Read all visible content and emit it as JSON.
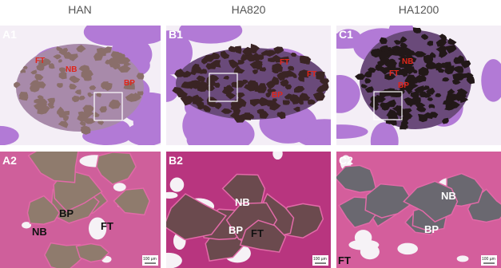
{
  "columns": [
    {
      "header": "HAN",
      "panels": [
        {
          "label": "A1",
          "annotations": [
            "FT",
            "NB",
            "BP"
          ]
        },
        {
          "label": "A2",
          "annotations": [
            "BP",
            "NB",
            "FT"
          ],
          "scale_bar": "100 µm"
        }
      ]
    },
    {
      "header": "HA820",
      "panels": [
        {
          "label": "B1",
          "annotations": [
            "FT",
            "FT",
            "BP"
          ]
        },
        {
          "label": "B2",
          "annotations": [
            "NB",
            "BP",
            "FT"
          ],
          "scale_bar": "100 µm"
        }
      ]
    },
    {
      "header": "HA1200",
      "panels": [
        {
          "label": "C1",
          "annotations": [
            "NB",
            "FT",
            "BP"
          ]
        },
        {
          "label": "C2",
          "annotations": [
            "NB",
            "BP",
            "FT"
          ],
          "scale_bar": "100 µm"
        }
      ]
    }
  ]
}
